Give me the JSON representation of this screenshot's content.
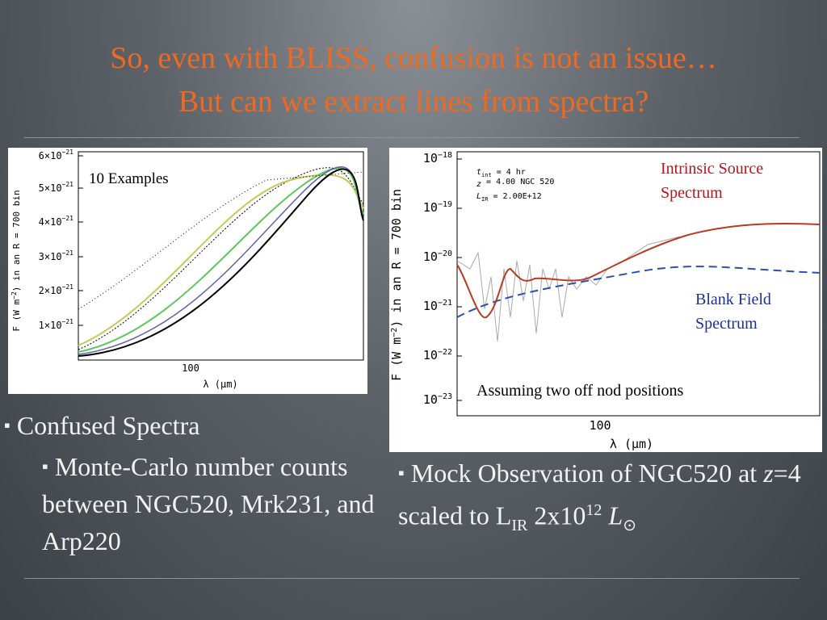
{
  "title": {
    "line1": "So, even with BLISS, confusion is not an issue…",
    "line2": "But can we extract lines from spectra?"
  },
  "left_figure": {
    "annotation": "10 Examples",
    "yticks": [
      {
        "base": "6×10",
        "exp": "−21"
      },
      {
        "base": "5×10",
        "exp": "−21"
      },
      {
        "base": "4×10",
        "exp": "−21"
      },
      {
        "base": "3×10",
        "exp": "−21"
      },
      {
        "base": "2×10",
        "exp": "−21"
      },
      {
        "base": "1×10",
        "exp": "−21"
      }
    ],
    "xtick": "100",
    "ylabel": {
      "a": "F (W m",
      "exp": "−2",
      "b": ") in an R = 700 bin"
    },
    "xlabel": "λ (μm)"
  },
  "right_figure": {
    "yticks": [
      {
        "base": "10",
        "exp": "−18"
      },
      {
        "base": "10",
        "exp": "−19"
      },
      {
        "base": "10",
        "exp": "−20"
      },
      {
        "base": "10",
        "exp": "−21"
      },
      {
        "base": "10",
        "exp": "−22"
      },
      {
        "base": "10",
        "exp": "−23"
      }
    ],
    "xtick": "100",
    "ylabel": {
      "a": "F (W m",
      "exp": "−2",
      "b": ") in an R = 700 bin"
    },
    "xlabel": "λ (μm)",
    "params": [
      {
        "sym": "t",
        "sub": "int",
        "text": " = 4 hr"
      },
      {
        "sym": "z",
        "sub": "",
        "text": " = 4.00  NGC 520"
      },
      {
        "sym": "L",
        "sub": "IR",
        "text": " = 2.00E+12"
      }
    ],
    "source_label": [
      "Intrinsic Source",
      "Spectrum"
    ],
    "blank_label": [
      "Blank Field",
      "Spectrum"
    ],
    "note": "Assuming two off nod positions"
  },
  "bullets": {
    "b1": "Confused Spectra",
    "b1_sub": "Monte-Carlo number counts between NGC520, Mrk231, and Arp220",
    "b2": {
      "a": "Mock Observation of NGC520 at ",
      "z": "z",
      "b": "=4 scaled to L",
      "sub": "IR",
      "c": " 2x10",
      "sup": "12",
      "d": " ",
      "L": "L",
      "sun": "⊙"
    }
  }
}
